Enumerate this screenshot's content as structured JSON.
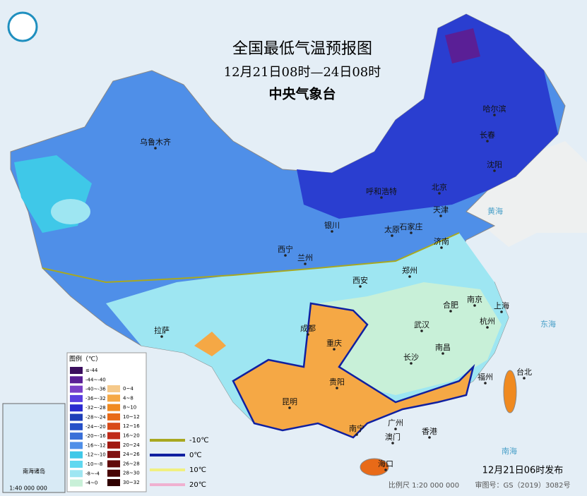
{
  "header": {
    "title": "全国最低气温预报图",
    "period": "12月21日08时—24日08时",
    "agency": "中央气象台"
  },
  "legend": {
    "title": "图例（℃）",
    "cold": [
      {
        "label": "≤-44",
        "color": "#3b0f5e"
      },
      {
        "label": "-44~-40",
        "color": "#5a1f96"
      },
      {
        "label": "-40~-36",
        "color": "#7a3fc8"
      },
      {
        "label": "-36~-32",
        "color": "#5a3ee0"
      },
      {
        "label": "-32~-28",
        "color": "#2a2ad0"
      },
      {
        "label": "-28~-24",
        "color": "#1f3fb8"
      },
      {
        "label": "-24~-20",
        "color": "#2650c8"
      },
      {
        "label": "-20~-16",
        "color": "#3a6fd8"
      },
      {
        "label": "-16~-12",
        "color": "#4f8fe8"
      },
      {
        "label": "-12~-10",
        "color": "#3fc8e8"
      },
      {
        "label": "-10~-8",
        "color": "#60d8f0"
      },
      {
        "label": "-8~-4",
        "color": "#9ee6f2"
      },
      {
        "label": "-4~0",
        "color": "#c8f0d8"
      }
    ],
    "warm": [
      {
        "label": "0~4",
        "color": "#f5c98a"
      },
      {
        "label": "4~8",
        "color": "#f5a845"
      },
      {
        "label": "8~10",
        "color": "#f08a20"
      },
      {
        "label": "10~12",
        "color": "#e86a18"
      },
      {
        "label": "12~16",
        "color": "#d84a18"
      },
      {
        "label": "16~20",
        "color": "#c02a18"
      },
      {
        "label": "20~24",
        "color": "#a01810"
      },
      {
        "label": "24~26",
        "color": "#801010"
      },
      {
        "label": "26~28",
        "color": "#600808"
      },
      {
        "label": "28~30",
        "color": "#480404"
      },
      {
        "label": "30~32",
        "color": "#300000"
      }
    ],
    "isotherms": [
      {
        "label": "-10℃",
        "color": "#a8a820"
      },
      {
        "label": "0℃",
        "color": "#1020a0"
      },
      {
        "label": "10℃",
        "color": "#f0f080"
      },
      {
        "label": "20℃",
        "color": "#f0b0d0"
      }
    ]
  },
  "cities": [
    "乌鲁木齐",
    "哈尔滨",
    "长春",
    "沈阳",
    "呼和浩特",
    "北京",
    "天津",
    "银川",
    "太原",
    "石家庄",
    "济南",
    "西宁",
    "兰州",
    "郑州",
    "西安",
    "合肥",
    "南京",
    "上海",
    "杭州",
    "武汉",
    "成都",
    "重庆",
    "拉萨",
    "南昌",
    "长沙",
    "贵阳",
    "福州",
    "台北",
    "昆明",
    "南宁",
    "广州",
    "澳门",
    "香港",
    "海口"
  ],
  "seas": [
    "黄海",
    "东海",
    "南海"
  ],
  "inset": {
    "label": "南海诸岛",
    "scale": "1:40 000 000"
  },
  "footer": {
    "issued": "12月21日06时发布",
    "scale": "比例尺 1:20 000 000",
    "review": "审图号：GS（2019）3082号"
  }
}
